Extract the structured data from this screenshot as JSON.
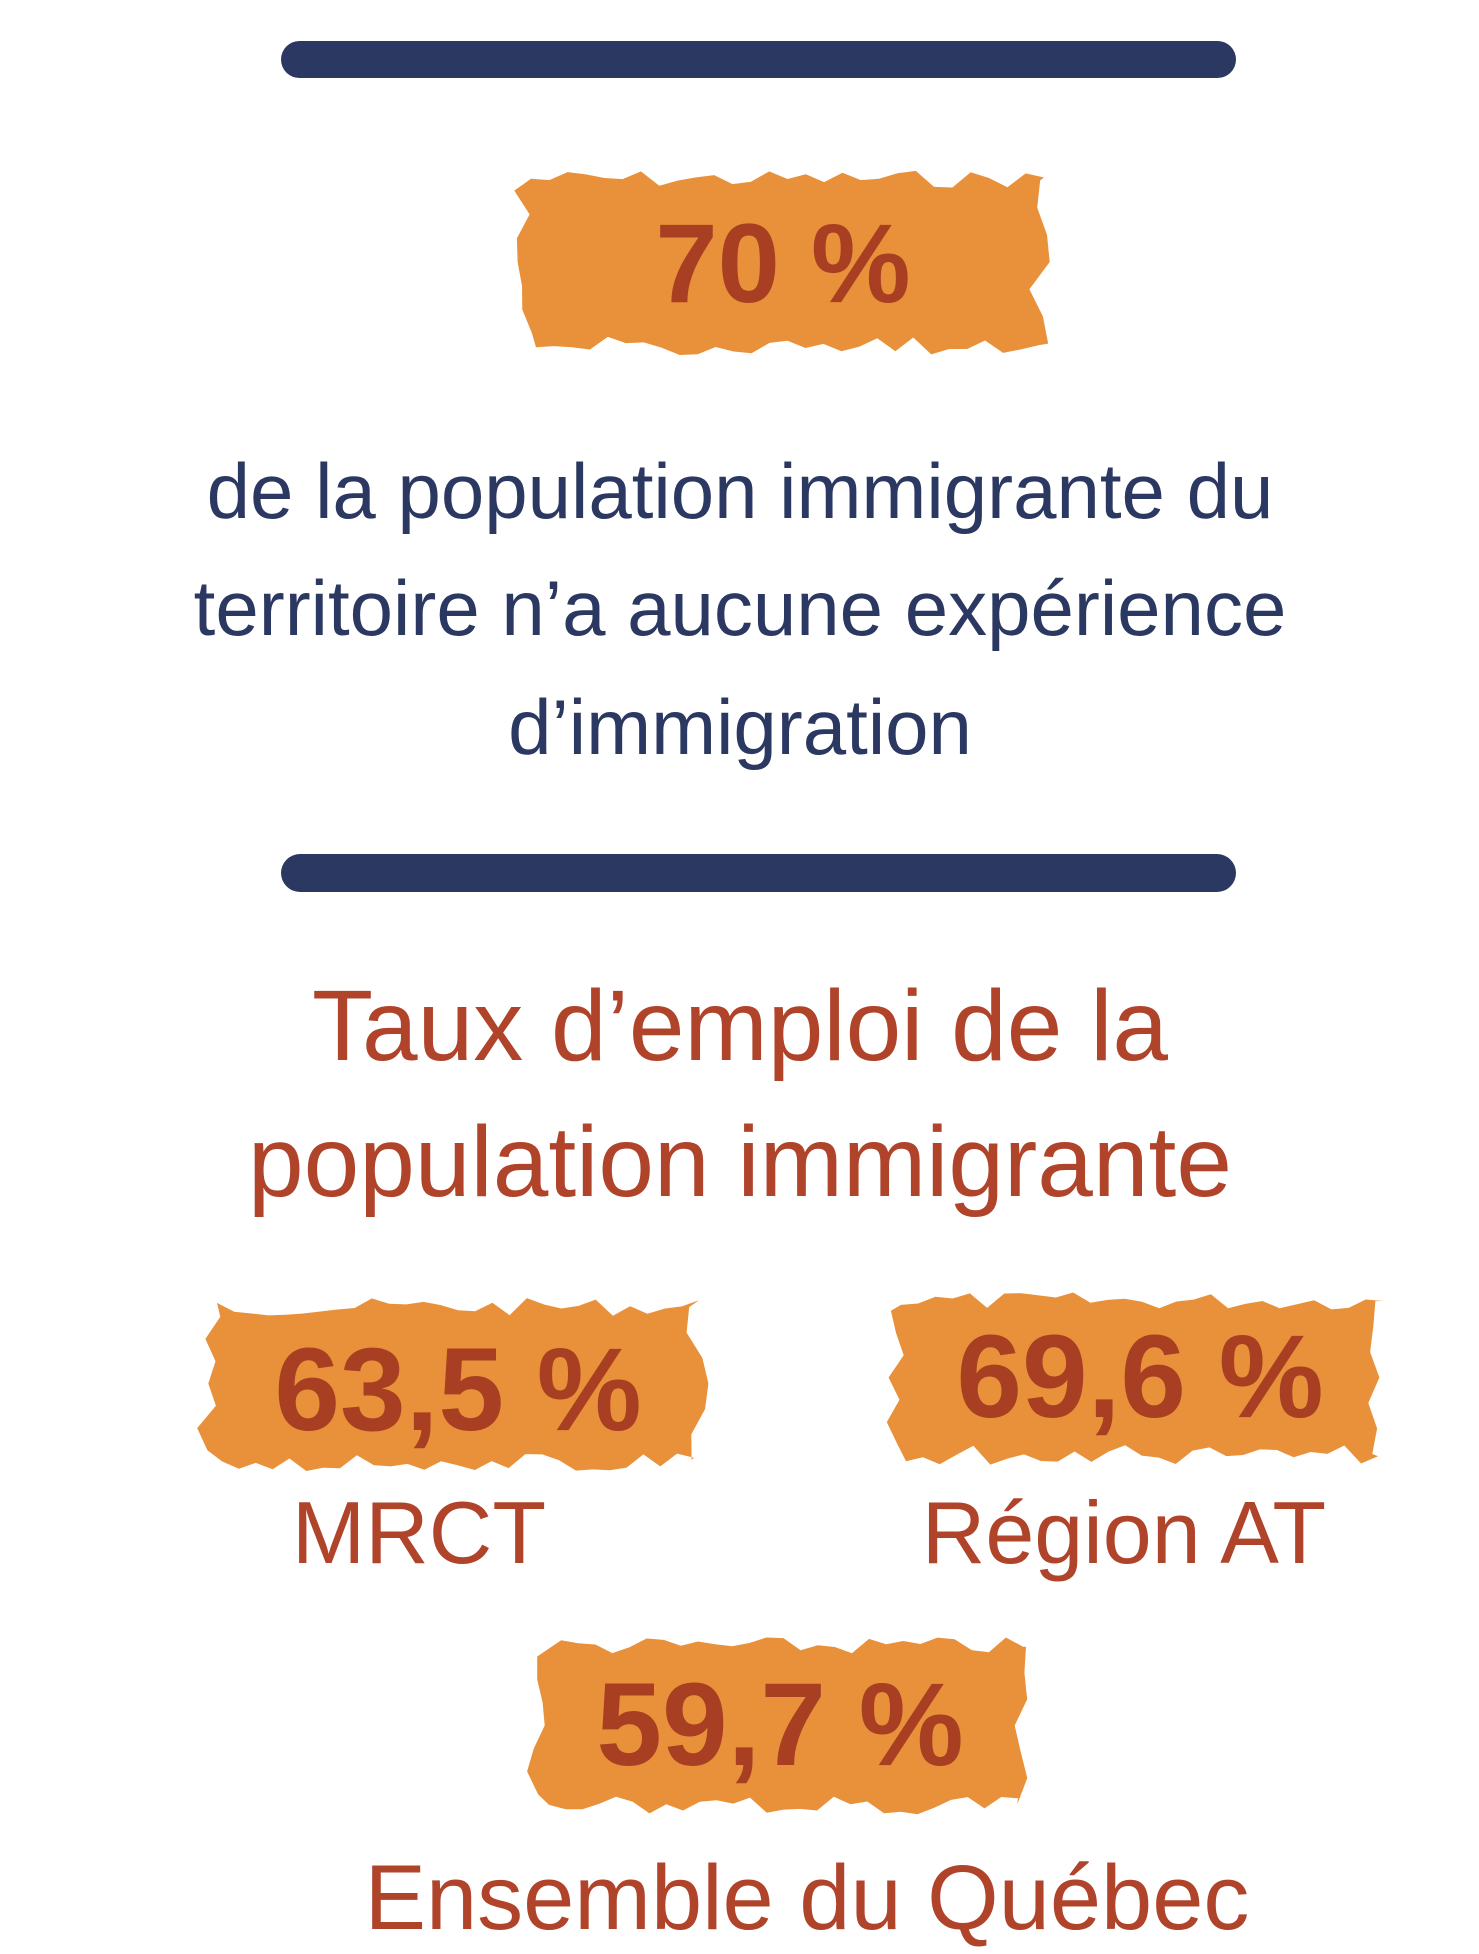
{
  "highlight": {
    "value": "70 %",
    "lines": [
      "de la population immigrante du",
      "territoire n’a aucune expérience",
      "d’immigration"
    ]
  },
  "section": {
    "title_lines": [
      "Taux d’emploi de la",
      "population immigrante"
    ],
    "items": [
      {
        "value": "63,5 %",
        "label": "MRCT"
      },
      {
        "value": "69,6 %",
        "label": "Région AT"
      },
      {
        "value": "59,7 %",
        "label": "Ensemble du Québec"
      }
    ]
  }
}
